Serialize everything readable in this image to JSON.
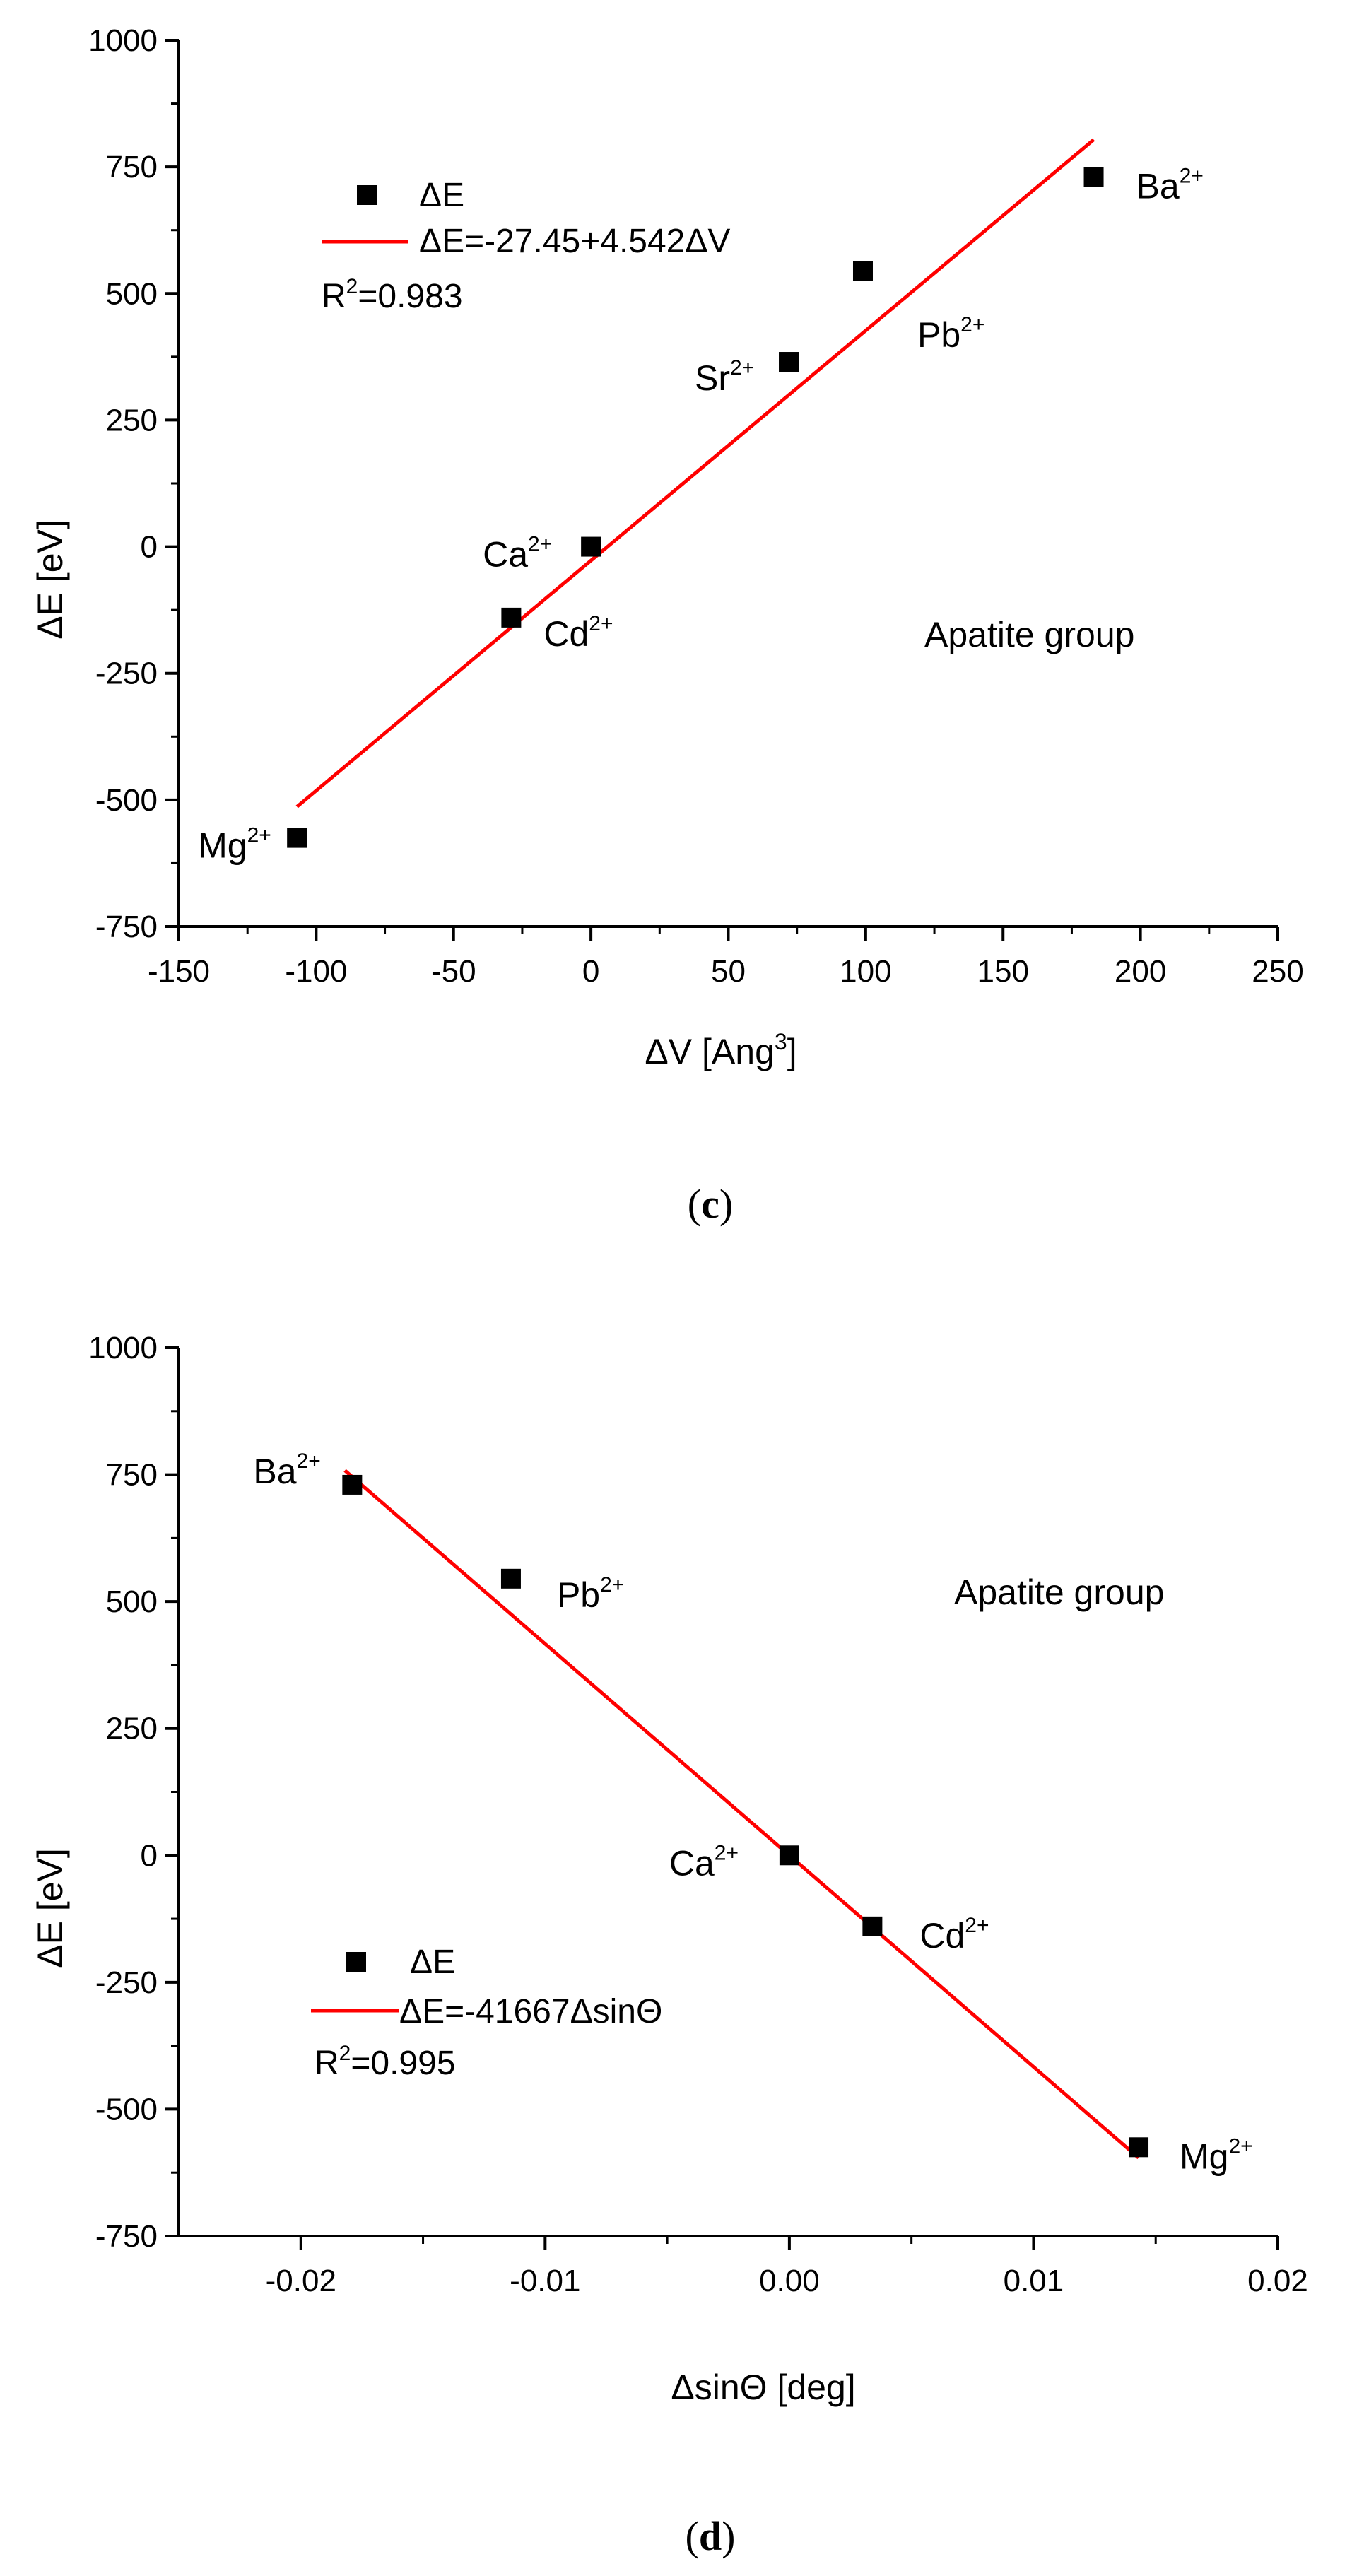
{
  "colors": {
    "fit": "#ff0000",
    "points": "#000000",
    "axis": "#000000"
  },
  "panels": [
    {
      "caption": {
        "open": "(",
        "letter": "c",
        "close": ")"
      },
      "annotation": "Apatite group",
      "legend": {
        "marker_label": "ΔE",
        "line_label": "ΔE=-27.45+4.542ΔV",
        "r2_label": "R",
        "r2_sup": "2",
        "r2_value": "=0.983"
      }
    },
    {
      "caption": {
        "open": "(",
        "letter": "d",
        "close": ")"
      },
      "annotation": "Apatite group",
      "legend": {
        "marker_label": "ΔE",
        "line_label": "ΔE=-41667ΔsinΘ",
        "r2_label": "R",
        "r2_sup": "2",
        "r2_value": "=0.995"
      }
    }
  ],
  "chart_data": [
    {
      "type": "scatter",
      "xlabel": {
        "base": "ΔV [Ang",
        "sup": "3",
        "end": "]"
      },
      "ylabel": "ΔE [eV]",
      "xlim": [
        -150,
        250
      ],
      "ylim": [
        -750,
        1000
      ],
      "xticks": [
        "-150",
        "-100",
        "-50",
        "0",
        "50",
        "100",
        "150",
        "200",
        "250"
      ],
      "yticks": [
        "-750",
        "-500",
        "-250",
        "0",
        "250",
        "500",
        "750",
        "1000"
      ],
      "series": [
        {
          "name": "ΔE",
          "points": [
            {
              "label": "Mg",
              "charge": "2+",
              "x": -107,
              "y": -575
            },
            {
              "label": "Cd",
              "charge": "2+",
              "x": -29,
              "y": -140
            },
            {
              "label": "Ca",
              "charge": "2+",
              "x": 0,
              "y": 0
            },
            {
              "label": "Sr",
              "charge": "2+",
              "x": 72,
              "y": 365
            },
            {
              "label": "Pb",
              "charge": "2+",
              "x": 99,
              "y": 545
            },
            {
              "label": "Ba",
              "charge": "2+",
              "x": 183,
              "y": 730
            }
          ]
        }
      ],
      "fit": {
        "intercept": -27.45,
        "slope": 4.542,
        "x_range": [
          -107,
          183
        ]
      }
    },
    {
      "type": "scatter",
      "xlabel": {
        "base": "ΔsinΘ [deg]",
        "sup": "",
        "end": ""
      },
      "ylabel": "ΔE [eV]",
      "xlim": [
        -0.025,
        0.02
      ],
      "ylim": [
        -750,
        1000
      ],
      "xticks": [
        "-0.02",
        "-0.01",
        "0.00",
        "0.01",
        "0.02"
      ],
      "yticks": [
        "-750",
        "-500",
        "-250",
        "0",
        "250",
        "500",
        "750",
        "1000"
      ],
      "series": [
        {
          "name": "ΔE",
          "points": [
            {
              "label": "Ba",
              "charge": "2+",
              "x": -0.0179,
              "y": 730
            },
            {
              "label": "Pb",
              "charge": "2+",
              "x": -0.0114,
              "y": 545
            },
            {
              "label": "Ca",
              "charge": "2+",
              "x": 0.0,
              "y": 0
            },
            {
              "label": "Cd",
              "charge": "2+",
              "x": 0.0034,
              "y": -140
            },
            {
              "label": "Mg",
              "charge": "2+",
              "x": 0.0143,
              "y": -575
            }
          ]
        }
      ],
      "fit": {
        "intercept": 0,
        "slope": -41667,
        "x_range": [
          -0.0182,
          0.0143
        ]
      }
    }
  ]
}
